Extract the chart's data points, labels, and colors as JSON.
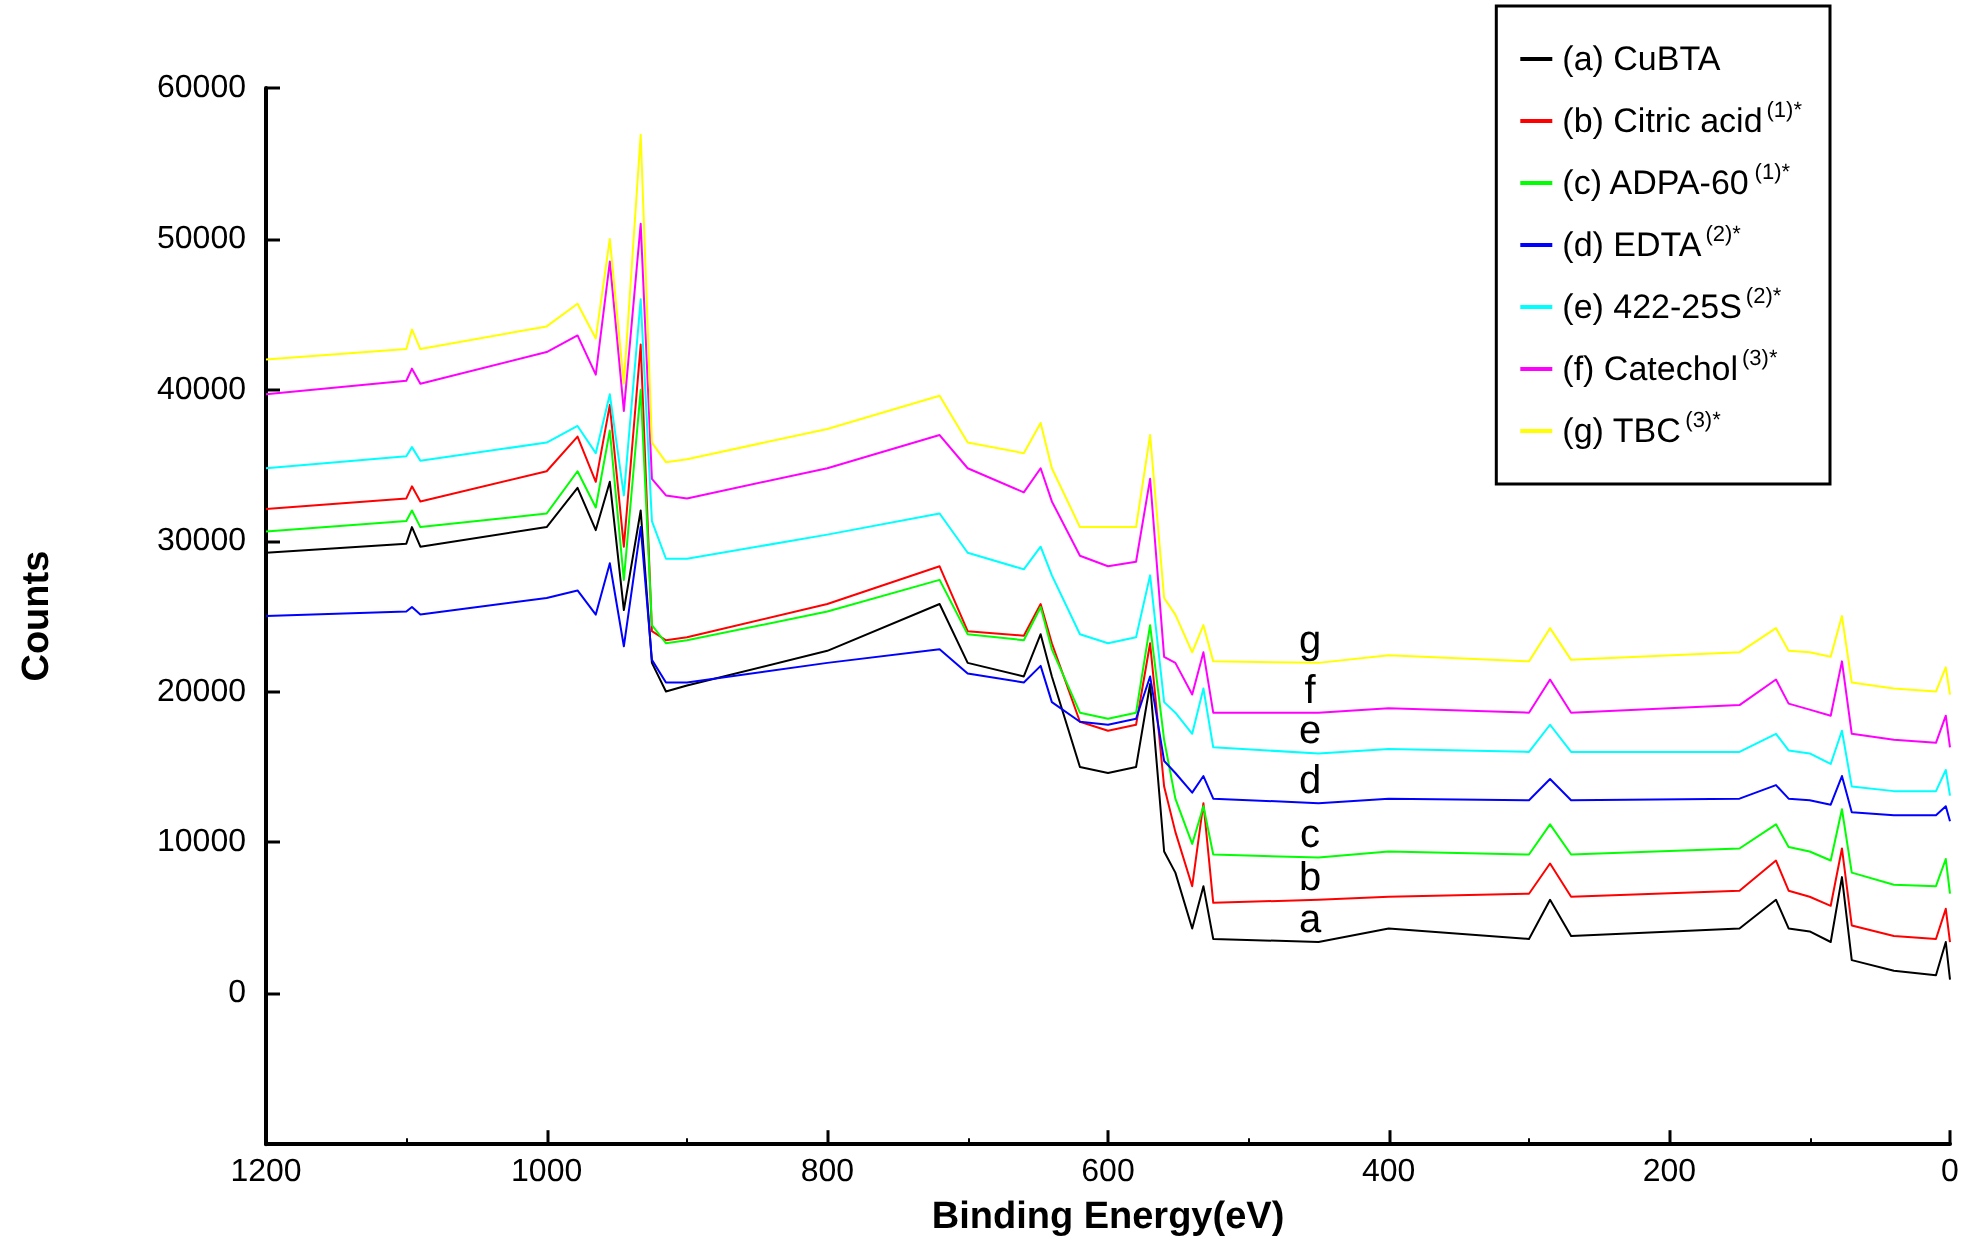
{
  "chart_data": {
    "type": "line",
    "xlabel": "Binding Energy(eV)",
    "ylabel": "Counts",
    "x": [
      1200,
      1100,
      1096,
      1090,
      1000,
      978,
      965,
      955,
      945,
      933,
      925,
      915,
      900,
      800,
      720,
      700,
      660,
      648,
      640,
      620,
      600,
      580,
      570,
      560,
      552,
      540,
      532,
      525,
      450,
      400,
      300,
      285,
      270,
      150,
      124,
      115,
      100,
      85,
      77,
      70,
      40,
      10,
      3,
      0
    ],
    "series": [
      {
        "name": "(a) CuBTA",
        "color": "#000000",
        "values": [
          29200,
          29800,
          30900,
          29600,
          30900,
          33500,
          30700,
          33900,
          25400,
          32000,
          21900,
          20000,
          20400,
          22700,
          25800,
          21900,
          21000,
          23800,
          21000,
          15000,
          14600,
          15000,
          20500,
          9400,
          8000,
          4300,
          7100,
          3600,
          3400,
          4300,
          3600,
          6200,
          3800,
          4300,
          6200,
          4300,
          4100,
          3400,
          7700,
          2200,
          1500,
          1200,
          3400,
          900
        ]
      },
      {
        "name": "(b) Citric acid$^{(1)*}$",
        "color": "#ff0000",
        "values": [
          32100,
          32800,
          33600,
          32600,
          34600,
          36900,
          33900,
          39000,
          29600,
          43000,
          24000,
          23400,
          23600,
          25800,
          28300,
          24000,
          23700,
          25800,
          23200,
          18000,
          17400,
          17800,
          23200,
          13700,
          10700,
          7100,
          12600,
          6000,
          6200,
          6400,
          6600,
          8600,
          6400,
          6800,
          8800,
          6800,
          6400,
          5800,
          9600,
          4500,
          3800,
          3600,
          5600,
          3400
        ]
      },
      {
        "name": "(c) ADPA-60$^{(1)*}$",
        "color": "#00ff00",
        "values": [
          30600,
          31300,
          32000,
          30900,
          31800,
          34600,
          32200,
          37300,
          27400,
          40000,
          24400,
          23200,
          23400,
          25300,
          27400,
          23800,
          23400,
          25600,
          22800,
          18600,
          18200,
          18600,
          24400,
          16800,
          12900,
          9900,
          12400,
          9200,
          9000,
          9400,
          9200,
          11200,
          9200,
          9600,
          11200,
          9700,
          9400,
          8800,
          12200,
          8000,
          7200,
          7100,
          8900,
          6600
        ]
      },
      {
        "name": "(d) EDTA$^{(2)*}$",
        "color": "#0000ff",
        "values": [
          25000,
          25300,
          25600,
          25100,
          26200,
          26700,
          25100,
          28500,
          23000,
          30900,
          22100,
          20600,
          20600,
          21900,
          22800,
          21200,
          20600,
          21700,
          19300,
          18000,
          17800,
          18200,
          21000,
          15400,
          14600,
          13300,
          14400,
          12900,
          12600,
          12900,
          12800,
          14200,
          12800,
          12900,
          13800,
          12900,
          12800,
          12500,
          14400,
          12000,
          11800,
          11800,
          12400,
          11400
        ]
      },
      {
        "name": "(e) 422-25S$^{(2)*}$",
        "color": "#00ffff",
        "values": [
          34800,
          35600,
          36200,
          35300,
          36500,
          37600,
          35800,
          39700,
          33000,
          46000,
          31300,
          28800,
          28800,
          30400,
          31800,
          29200,
          28100,
          29600,
          27700,
          23800,
          23200,
          23600,
          27700,
          19300,
          18600,
          17200,
          20200,
          16300,
          15900,
          16200,
          16000,
          17800,
          16000,
          16000,
          17200,
          16100,
          15900,
          15200,
          17400,
          13700,
          13400,
          13400,
          14800,
          13100
        ]
      },
      {
        "name": "(f) Catechol$^{(3)*}$",
        "color": "#ff00ff",
        "values": [
          39700,
          40600,
          41400,
          40400,
          42500,
          43600,
          41000,
          48500,
          38600,
          51000,
          34100,
          33000,
          32800,
          34800,
          37000,
          34800,
          33200,
          34800,
          32600,
          29000,
          28300,
          28600,
          34100,
          22300,
          21900,
          19800,
          22600,
          18600,
          18600,
          18900,
          18600,
          20800,
          18600,
          19100,
          20800,
          19200,
          18800,
          18400,
          22000,
          17200,
          16800,
          16600,
          18400,
          16300
        ]
      },
      {
        "name": "(g) TBC$^{(3)*}$",
        "color": "#ffff00",
        "values": [
          42000,
          42700,
          44000,
          42700,
          44200,
          45700,
          43400,
          50000,
          40400,
          56900,
          36500,
          35200,
          35400,
          37400,
          39600,
          36500,
          35800,
          37800,
          34800,
          30900,
          30900,
          30900,
          37000,
          26200,
          25100,
          22600,
          24400,
          22000,
          21900,
          22400,
          22000,
          24200,
          22100,
          22600,
          24200,
          22700,
          22600,
          22300,
          25000,
          20600,
          20200,
          20000,
          21600,
          19800
        ]
      }
    ],
    "xlim": [
      1200,
      0
    ],
    "xticks": [
      1200,
      1000,
      800,
      600,
      400,
      200,
      0
    ],
    "ylim": [
      -10000,
      60000
    ],
    "yticks": [
      {
        "value": -10000,
        "label": null
      },
      0,
      10000,
      20000,
      30000,
      40000,
      50000,
      60000
    ],
    "annotations": [
      "a",
      "b",
      "c",
      "d",
      "e",
      "f",
      "g"
    ],
    "legend": "top right",
    "grid": false,
    "line_style": "solid"
  }
}
